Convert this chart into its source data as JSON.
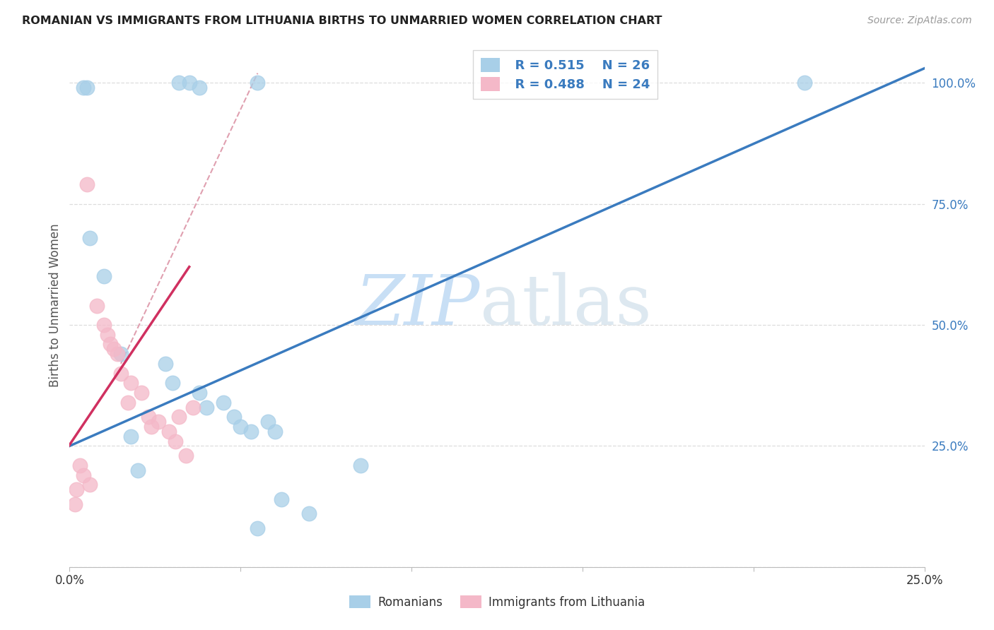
{
  "title": "ROMANIAN VS IMMIGRANTS FROM LITHUANIA BIRTHS TO UNMARRIED WOMEN CORRELATION CHART",
  "source": "Source: ZipAtlas.com",
  "ylabel": "Births to Unmarried Women",
  "xlim": [
    0.0,
    25.0
  ],
  "ylim": [
    0.0,
    108.0
  ],
  "ytick_vals": [
    0,
    25,
    50,
    75,
    100
  ],
  "ytick_labels": [
    "",
    "25.0%",
    "50.0%",
    "75.0%",
    "100.0%"
  ],
  "xtick_vals": [
    0,
    5,
    10,
    15,
    20,
    25
  ],
  "xtick_labels": [
    "0.0%",
    "",
    "",
    "",
    "",
    "25.0%"
  ],
  "legend_r1": "R = 0.515",
  "legend_n1": "N = 26",
  "legend_r2": "R = 0.488",
  "legend_n2": "N = 24",
  "blue_color": "#a8cfe8",
  "pink_color": "#f4b8c8",
  "trend_blue": "#3a7bbf",
  "trend_pink": "#d03060",
  "trend_dashed_color": "#e0a0b0",
  "watermark_zip": "ZIP",
  "watermark_atlas": "atlas",
  "blue_scatter_x": [
    3.2,
    3.5,
    5.5,
    3.8,
    0.4,
    0.5,
    0.6,
    1.0,
    1.5,
    2.8,
    3.0,
    3.8,
    4.0,
    4.5,
    4.8,
    5.0,
    5.3,
    5.8,
    6.0,
    1.8,
    2.0,
    21.5,
    8.5,
    5.5,
    6.2,
    7.0
  ],
  "blue_scatter_y": [
    100.0,
    100.0,
    100.0,
    99.0,
    99.0,
    99.0,
    68.0,
    60.0,
    44.0,
    42.0,
    38.0,
    36.0,
    33.0,
    34.0,
    31.0,
    29.0,
    28.0,
    30.0,
    28.0,
    27.0,
    20.0,
    100.0,
    21.0,
    8.0,
    14.0,
    11.0
  ],
  "pink_scatter_x": [
    0.5,
    0.8,
    1.0,
    1.1,
    1.2,
    1.3,
    1.4,
    1.5,
    1.8,
    2.1,
    2.3,
    2.6,
    2.9,
    3.1,
    3.4,
    0.3,
    0.4,
    0.6,
    1.7,
    2.4,
    3.2,
    3.6,
    0.2,
    0.15
  ],
  "pink_scatter_y": [
    79.0,
    54.0,
    50.0,
    48.0,
    46.0,
    45.0,
    44.0,
    40.0,
    38.0,
    36.0,
    31.0,
    30.0,
    28.0,
    26.0,
    23.0,
    21.0,
    19.0,
    17.0,
    34.0,
    29.0,
    31.0,
    33.0,
    16.0,
    13.0
  ],
  "blue_line_x": [
    0.0,
    25.0
  ],
  "blue_line_y": [
    25.0,
    103.0
  ],
  "pink_line_x": [
    -0.5,
    3.5
  ],
  "pink_line_y": [
    20.0,
    62.0
  ],
  "dashed_line_x": [
    1.5,
    5.5
  ],
  "dashed_line_y": [
    42.0,
    102.0
  ]
}
